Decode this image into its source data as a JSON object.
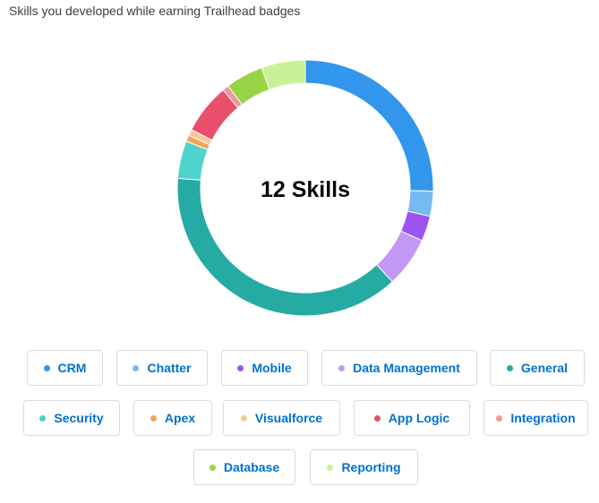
{
  "header": {
    "subtitle": "Skills you developed while earning Trailhead badges"
  },
  "chart_data": {
    "type": "pie",
    "variant": "donut",
    "center_label": "12 Skills",
    "legend_placement": "bottom",
    "slices": [
      {
        "name": "CRM",
        "value": 8,
        "color": "#3296ed"
      },
      {
        "name": "Chatter",
        "value": 1,
        "color": "#77b9f2"
      },
      {
        "name": "Mobile",
        "value": 1,
        "color": "#9d53f2"
      },
      {
        "name": "Data Management",
        "value": 2,
        "color": "#c398f5"
      },
      {
        "name": "General",
        "value": 12,
        "color": "#26aba4"
      },
      {
        "name": "Security",
        "value": 1.5,
        "color": "#4ed4cd"
      },
      {
        "name": "Apex",
        "value": 0.25,
        "color": "#f4a35c"
      },
      {
        "name": "Visualforce",
        "value": 0.25,
        "color": "#f9c994"
      },
      {
        "name": "App Logic",
        "value": 2,
        "color": "#e8506b"
      },
      {
        "name": "Integration",
        "value": 0.25,
        "color": "#f5929b"
      },
      {
        "name": "Database",
        "value": 1.5,
        "color": "#98d345"
      },
      {
        "name": "Reporting",
        "value": 1.75,
        "color": "#c8f297"
      }
    ]
  }
}
